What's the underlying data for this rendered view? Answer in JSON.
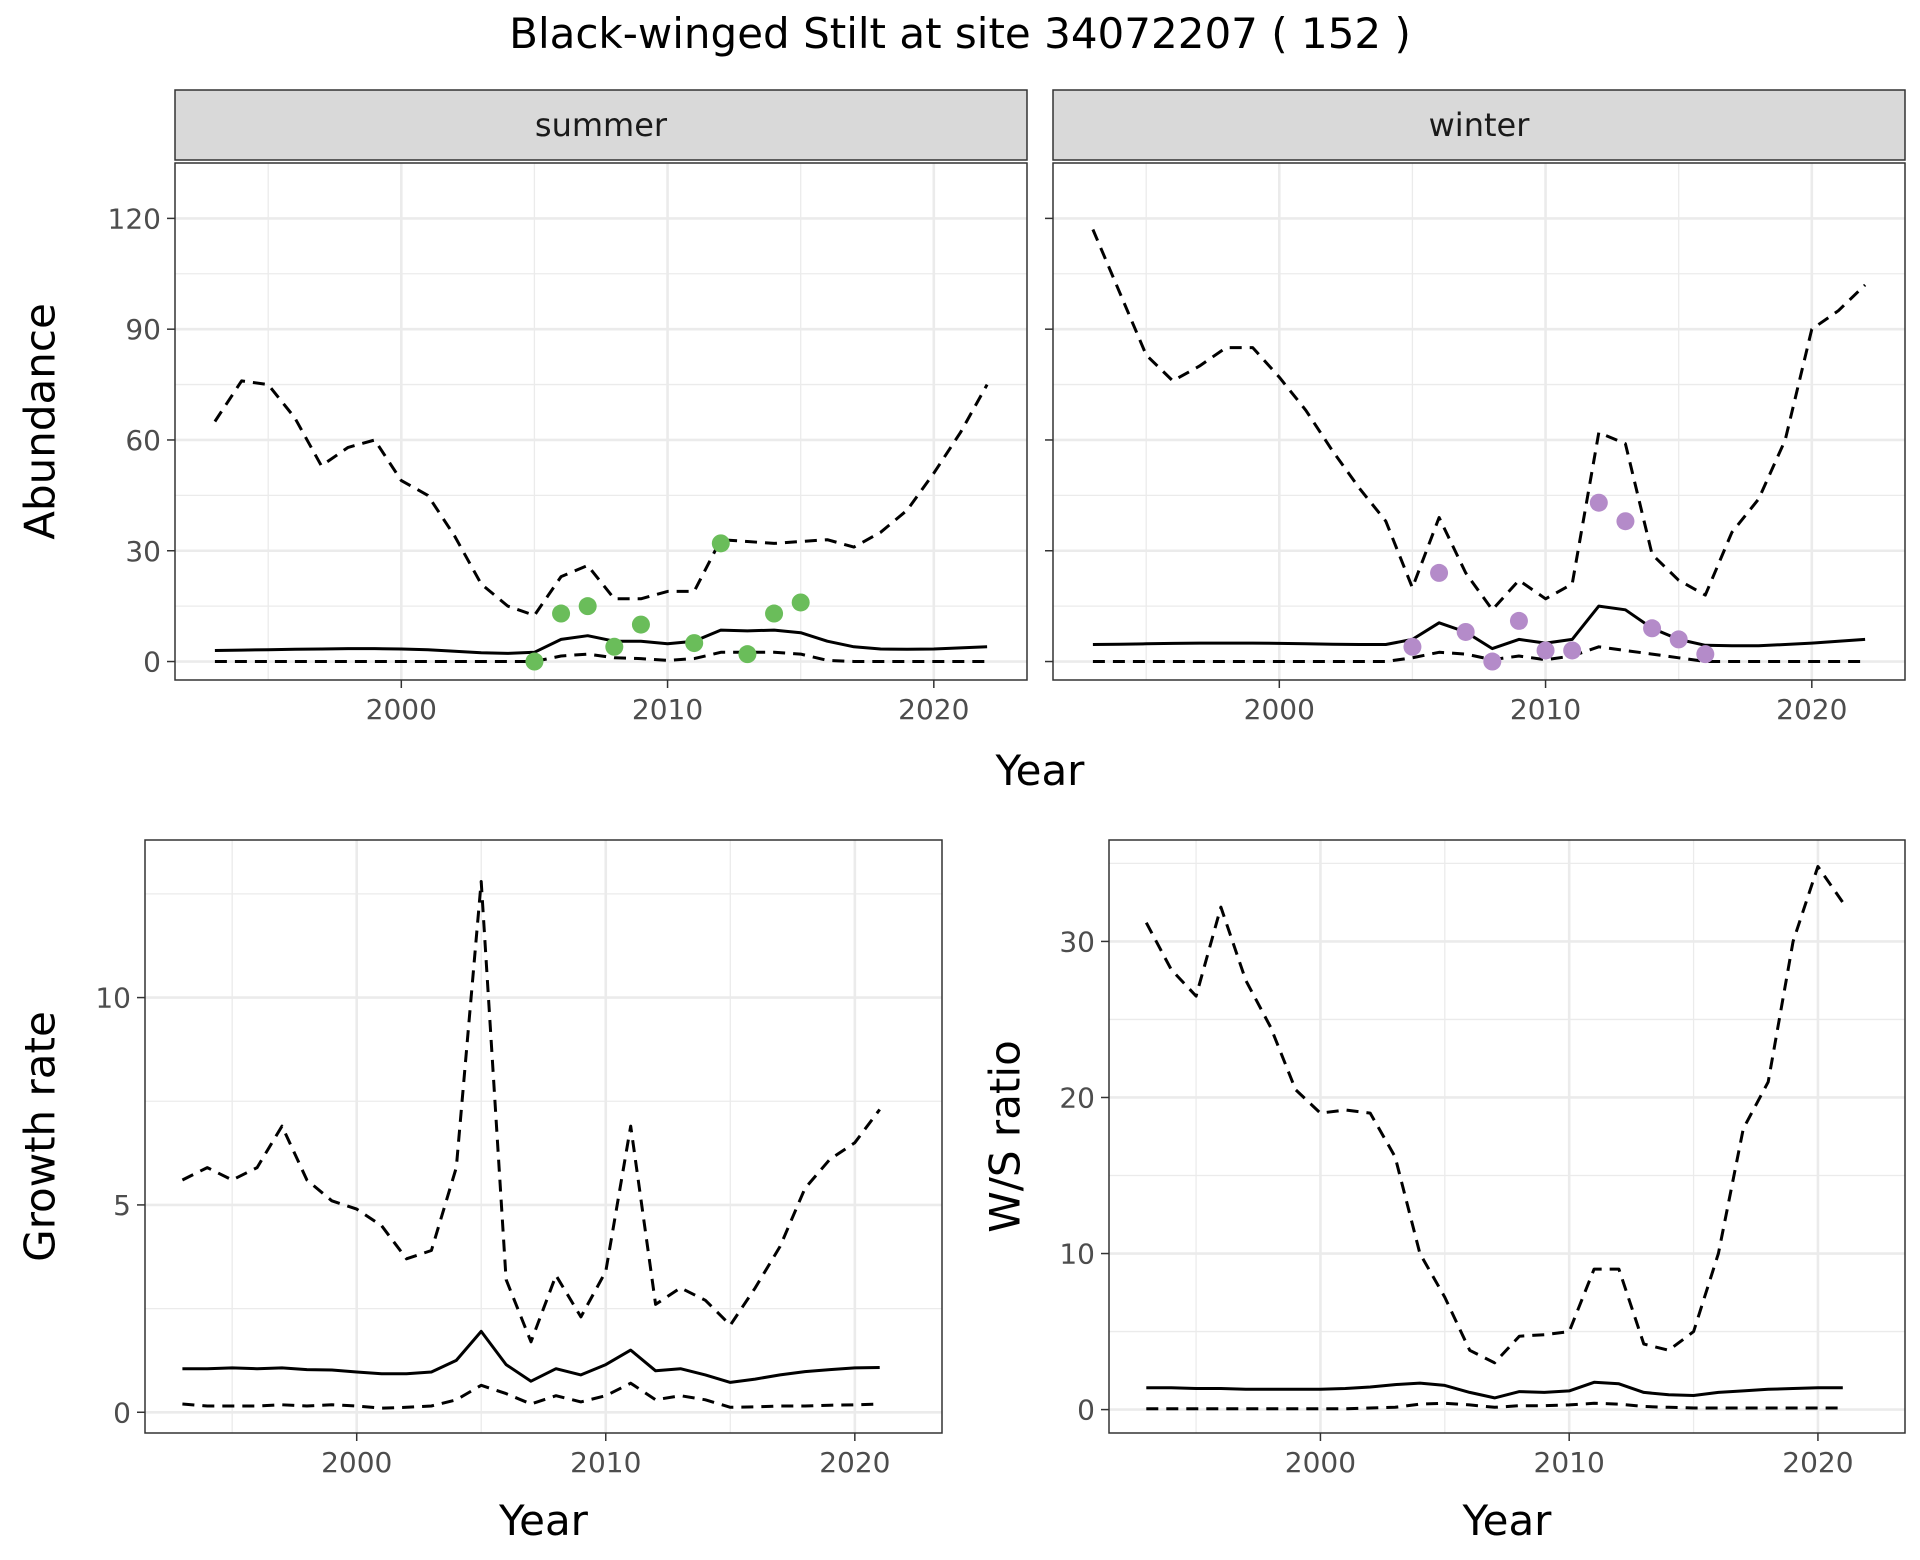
{
  "figure": {
    "title": "Black-winged Stilt at site 34072207 ( 152 )"
  },
  "colors": {
    "summer_points": "#6abd5a",
    "winter_points": "#b48bc9",
    "line": "#000000",
    "strip_fill": "#d9d9d9",
    "grid": "#ebebeb"
  },
  "chart_data": [
    {
      "type": "line",
      "panel": "summer",
      "strip_label": "summer",
      "xlabel": "Year",
      "ylabel": "Abundance",
      "xlim": [
        1991.5,
        2023.5
      ],
      "ylim": [
        -5,
        135
      ],
      "x_ticks": [
        2000,
        2010,
        2020
      ],
      "y_ticks": [
        0,
        30,
        60,
        90,
        120
      ],
      "grid": true,
      "series": [
        {
          "style": "dashed",
          "x": [
            1993,
            1994,
            1995,
            1996,
            1997,
            1998,
            1999,
            2000,
            2001,
            2002,
            2003,
            2004,
            2005,
            2006,
            2007,
            2008,
            2009,
            2010,
            2011,
            2012,
            2013,
            2014,
            2015,
            2016,
            2017,
            2018,
            2019,
            2020,
            2021,
            2022
          ],
          "y": [
            65,
            76,
            75,
            66,
            53,
            58,
            60,
            49,
            45,
            34,
            21,
            15,
            12.5,
            23,
            26,
            17,
            17,
            19,
            19,
            33,
            32.5,
            32,
            32.5,
            33,
            31,
            35,
            41,
            51,
            62,
            75
          ]
        },
        {
          "style": "solid",
          "x": [
            1993,
            1994,
            1995,
            1996,
            1997,
            1998,
            1999,
            2000,
            2001,
            2002,
            2003,
            2004,
            2005,
            2006,
            2007,
            2008,
            2009,
            2010,
            2011,
            2012,
            2013,
            2014,
            2015,
            2016,
            2017,
            2018,
            2019,
            2020,
            2021,
            2022
          ],
          "y": [
            3,
            3.1,
            3.2,
            3.3,
            3.4,
            3.5,
            3.5,
            3.4,
            3.2,
            2.8,
            2.4,
            2.2,
            2.5,
            6,
            7,
            5.5,
            5.5,
            4.8,
            5.5,
            8.5,
            8.3,
            8.5,
            7.8,
            5.5,
            4,
            3.4,
            3.3,
            3.4,
            3.7,
            4
          ]
        },
        {
          "style": "dashed",
          "x": [
            1993,
            1994,
            1995,
            1996,
            1997,
            1998,
            1999,
            2000,
            2001,
            2002,
            2003,
            2004,
            2005,
            2006,
            2007,
            2008,
            2009,
            2010,
            2011,
            2012,
            2013,
            2014,
            2015,
            2016,
            2017,
            2018,
            2019,
            2020,
            2021,
            2022
          ],
          "y": [
            0,
            0,
            0,
            0,
            0,
            0,
            0,
            0,
            0,
            0,
            0,
            0,
            0,
            1.5,
            2,
            1,
            0.8,
            0.3,
            0.8,
            2.5,
            2.5,
            2.5,
            2,
            0.3,
            0,
            0,
            0,
            0,
            0,
            0
          ]
        }
      ],
      "points": {
        "x": [
          2005,
          2006,
          2007,
          2008,
          2009,
          2011,
          2012,
          2013,
          2014,
          2015
        ],
        "y": [
          0,
          13,
          15,
          4,
          10,
          5,
          32,
          2,
          13,
          16
        ]
      }
    },
    {
      "type": "line",
      "panel": "winter",
      "strip_label": "winter",
      "xlabel": "Year",
      "ylabel": "",
      "xlim": [
        1991.5,
        2023.5
      ],
      "ylim": [
        -5,
        135
      ],
      "x_ticks": [
        2000,
        2010,
        2020
      ],
      "y_ticks": [
        0,
        30,
        60,
        90,
        120
      ],
      "grid": true,
      "series": [
        {
          "style": "dashed",
          "x": [
            1993,
            1994,
            1995,
            1996,
            1997,
            1998,
            1999,
            2000,
            2001,
            2002,
            2003,
            2004,
            2005,
            2006,
            2007,
            2008,
            2009,
            2010,
            2011,
            2012,
            2013,
            2014,
            2015,
            2016,
            2017,
            2018,
            2019,
            2020,
            2021,
            2022
          ],
          "y": [
            117,
            100,
            83,
            76,
            80,
            85,
            85,
            77,
            68,
            57,
            47,
            38,
            20,
            39,
            24,
            14,
            22,
            17,
            21,
            62,
            59,
            29,
            22,
            18,
            35,
            44,
            60,
            90,
            95,
            102
          ]
        },
        {
          "style": "solid",
          "x": [
            1993,
            1994,
            1995,
            1996,
            1997,
            1998,
            1999,
            2000,
            2001,
            2002,
            2003,
            2004,
            2005,
            2006,
            2007,
            2008,
            2009,
            2010,
            2011,
            2012,
            2013,
            2014,
            2015,
            2016,
            2017,
            2018,
            2019,
            2020,
            2021,
            2022
          ],
          "y": [
            4.6,
            4.7,
            4.8,
            4.9,
            5,
            5,
            5,
            4.9,
            4.8,
            4.7,
            4.6,
            4.6,
            6,
            10.5,
            8,
            3.5,
            6,
            5,
            6,
            15,
            14,
            9,
            6,
            4.4,
            4.3,
            4.3,
            4.6,
            5,
            5.5,
            6
          ]
        },
        {
          "style": "dashed",
          "x": [
            1993,
            1994,
            1995,
            1996,
            1997,
            1998,
            1999,
            2000,
            2001,
            2002,
            2003,
            2004,
            2005,
            2006,
            2007,
            2008,
            2009,
            2010,
            2011,
            2012,
            2013,
            2014,
            2015,
            2016,
            2017,
            2018,
            2019,
            2020,
            2021,
            2022
          ],
          "y": [
            0,
            0,
            0,
            0,
            0,
            0,
            0,
            0,
            0,
            0,
            0,
            0,
            1,
            2.5,
            2,
            0.5,
            1.5,
            0.5,
            1.5,
            4,
            3,
            2,
            1,
            0,
            0,
            0,
            0,
            0,
            0,
            0
          ]
        }
      ],
      "points": {
        "x": [
          2005,
          2006,
          2007,
          2008,
          2009,
          2010,
          2011,
          2012,
          2013,
          2014,
          2015,
          2016
        ],
        "y": [
          4,
          24,
          8,
          0,
          11,
          3,
          3,
          43,
          38,
          9,
          6,
          2
        ]
      }
    },
    {
      "type": "line",
      "panel": "growth",
      "xlabel": "Year",
      "ylabel": "Growth rate",
      "xlim": [
        1991.5,
        2023.5
      ],
      "ylim": [
        -0.5,
        13.8
      ],
      "x_ticks": [
        2000,
        2010,
        2020
      ],
      "y_ticks": [
        0,
        5,
        10
      ],
      "grid": true,
      "series": [
        {
          "style": "dashed",
          "x": [
            1993,
            1994,
            1995,
            1996,
            1997,
            1998,
            1999,
            2000,
            2001,
            2002,
            2003,
            2004,
            2005,
            2006,
            2007,
            2008,
            2009,
            2010,
            2011,
            2012,
            2013,
            2014,
            2015,
            2016,
            2017,
            2018,
            2019,
            2020,
            2021
          ],
          "y": [
            5.6,
            5.9,
            5.6,
            5.9,
            6.9,
            5.6,
            5.1,
            4.9,
            4.5,
            3.7,
            3.9,
            5.9,
            12.8,
            3.2,
            1.7,
            3.3,
            2.3,
            3.4,
            6.9,
            2.6,
            3,
            2.7,
            2.1,
            3,
            4,
            5.4,
            6.1,
            6.5,
            7.3
          ]
        },
        {
          "style": "solid",
          "x": [
            1993,
            1994,
            1995,
            1996,
            1997,
            1998,
            1999,
            2000,
            2001,
            2002,
            2003,
            2004,
            2005,
            2006,
            2007,
            2008,
            2009,
            2010,
            2011,
            2012,
            2013,
            2014,
            2015,
            2016,
            2017,
            2018,
            2019,
            2020,
            2021
          ],
          "y": [
            1.05,
            1.05,
            1.07,
            1.05,
            1.07,
            1.03,
            1.02,
            0.97,
            0.93,
            0.93,
            0.97,
            1.25,
            1.95,
            1.15,
            0.75,
            1.05,
            0.9,
            1.15,
            1.5,
            1,
            1.05,
            0.9,
            0.72,
            0.8,
            0.9,
            0.98,
            1.03,
            1.07,
            1.08
          ]
        },
        {
          "style": "dashed",
          "x": [
            1993,
            1994,
            1995,
            1996,
            1997,
            1998,
            1999,
            2000,
            2001,
            2002,
            2003,
            2004,
            2005,
            2006,
            2007,
            2008,
            2009,
            2010,
            2011,
            2012,
            2013,
            2014,
            2015,
            2016,
            2017,
            2018,
            2019,
            2020,
            2021
          ],
          "y": [
            0.2,
            0.15,
            0.15,
            0.15,
            0.18,
            0.15,
            0.18,
            0.15,
            0.1,
            0.12,
            0.15,
            0.3,
            0.65,
            0.45,
            0.2,
            0.4,
            0.25,
            0.4,
            0.7,
            0.3,
            0.4,
            0.3,
            0.12,
            0.13,
            0.15,
            0.15,
            0.17,
            0.18,
            0.2
          ]
        }
      ]
    },
    {
      "type": "line",
      "panel": "ratio",
      "xlabel": "Year",
      "ylabel": "W/S ratio",
      "xlim": [
        1991.5,
        2023.5
      ],
      "ylim": [
        -1.5,
        36.5
      ],
      "x_ticks": [
        2000,
        2010,
        2020
      ],
      "y_ticks": [
        0,
        10,
        20,
        30
      ],
      "grid": true,
      "series": [
        {
          "style": "dashed",
          "x": [
            1993,
            1994,
            1995,
            1996,
            1997,
            1998,
            1999,
            2000,
            2001,
            2002,
            2003,
            2004,
            2005,
            2006,
            2007,
            2008,
            2009,
            2010,
            2011,
            2012,
            2013,
            2014,
            2015,
            2016,
            2017,
            2018,
            2019,
            2020,
            2021
          ],
          "y": [
            31.2,
            28.2,
            26.5,
            32.2,
            27.5,
            24.5,
            20.5,
            19,
            19.2,
            19,
            16.2,
            10,
            7.2,
            3.8,
            3,
            4.7,
            4.8,
            5,
            9,
            9,
            4.2,
            3.8,
            5,
            10,
            18,
            21,
            30,
            34.8,
            32.5
          ]
        },
        {
          "style": "solid",
          "x": [
            1993,
            1994,
            1995,
            1996,
            1997,
            1998,
            1999,
            2000,
            2001,
            2002,
            2003,
            2004,
            2005,
            2006,
            2007,
            2008,
            2009,
            2010,
            2011,
            2012,
            2013,
            2014,
            2015,
            2016,
            2017,
            2018,
            2019,
            2020,
            2021
          ],
          "y": [
            1.4,
            1.4,
            1.35,
            1.35,
            1.3,
            1.3,
            1.3,
            1.3,
            1.35,
            1.45,
            1.6,
            1.7,
            1.55,
            1.1,
            0.75,
            1.15,
            1.1,
            1.2,
            1.75,
            1.65,
            1.1,
            0.95,
            0.9,
            1.1,
            1.2,
            1.3,
            1.35,
            1.4,
            1.4
          ]
        },
        {
          "style": "dashed",
          "x": [
            1993,
            1994,
            1995,
            1996,
            1997,
            1998,
            1999,
            2000,
            2001,
            2002,
            2003,
            2004,
            2005,
            2006,
            2007,
            2008,
            2009,
            2010,
            2011,
            2012,
            2013,
            2014,
            2015,
            2016,
            2017,
            2018,
            2019,
            2020,
            2021
          ],
          "y": [
            0.05,
            0.05,
            0.05,
            0.05,
            0.05,
            0.05,
            0.05,
            0.05,
            0.05,
            0.1,
            0.15,
            0.35,
            0.4,
            0.3,
            0.15,
            0.25,
            0.25,
            0.3,
            0.4,
            0.35,
            0.2,
            0.15,
            0.1,
            0.1,
            0.1,
            0.1,
            0.1,
            0.1,
            0.1
          ]
        }
      ]
    }
  ]
}
